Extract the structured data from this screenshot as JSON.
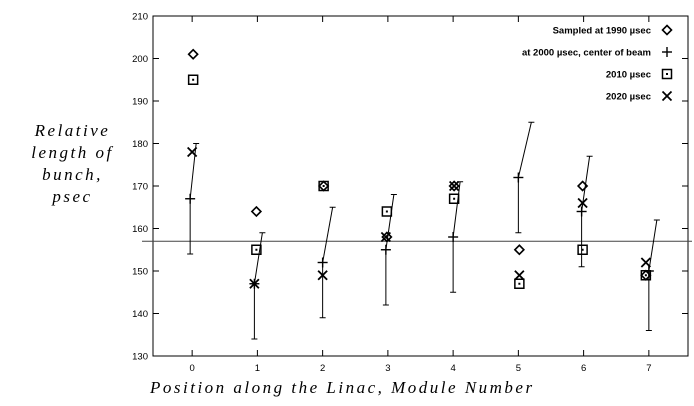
{
  "chart_data": {
    "type": "scatter",
    "title": "",
    "xlabel": "Position along the Linac, Module Number",
    "ylabel_lines": [
      "Relative",
      "length of",
      "bunch,",
      "psec"
    ],
    "xlim": [
      -0.6,
      7.6
    ],
    "ylim": [
      130,
      210
    ],
    "x_ticks": [
      0,
      1,
      2,
      3,
      4,
      5,
      6,
      7
    ],
    "y_ticks": [
      130,
      140,
      150,
      160,
      170,
      180,
      190,
      200,
      210
    ],
    "reference_line_y": 157,
    "legend_position": "top-right",
    "series": [
      {
        "name": "Sampled at 1990 µsec",
        "marker": "diamond",
        "points": [
          [
            0,
            201
          ],
          [
            1,
            164
          ],
          [
            2,
            170
          ],
          [
            3,
            158
          ],
          [
            4,
            170
          ],
          [
            5,
            155
          ],
          [
            6,
            170
          ],
          [
            7,
            149
          ]
        ]
      },
      {
        "name": "at 2000 µsec, center of beam",
        "marker": "plus",
        "points": [
          [
            0,
            167
          ],
          [
            1,
            147
          ],
          [
            2,
            152
          ],
          [
            3,
            155
          ],
          [
            4,
            158
          ],
          [
            5,
            172
          ],
          [
            6,
            164
          ],
          [
            7,
            150
          ]
        ]
      },
      {
        "name": "2010 µsec",
        "marker": "square-dot",
        "points": [
          [
            0,
            195
          ],
          [
            1,
            155
          ],
          [
            2,
            170
          ],
          [
            3,
            164
          ],
          [
            4,
            167
          ],
          [
            5,
            147
          ],
          [
            6,
            155
          ],
          [
            7,
            149
          ]
        ]
      },
      {
        "name": "2020 µsec",
        "marker": "x",
        "points": [
          [
            0,
            178
          ],
          [
            1,
            147
          ],
          [
            2,
            149
          ],
          [
            3,
            158
          ],
          [
            4,
            170
          ],
          [
            5,
            149
          ],
          [
            6,
            166
          ],
          [
            7,
            152
          ]
        ]
      }
    ],
    "error_bars": [
      {
        "x": 0,
        "low": 154,
        "high": 180,
        "center": 167
      },
      {
        "x": 1,
        "low": 134,
        "high": 159,
        "center": 147
      },
      {
        "x": 2,
        "low": 139,
        "high": 165,
        "center": 152
      },
      {
        "x": 3,
        "low": 142,
        "high": 168,
        "center": 155
      },
      {
        "x": 4,
        "low": 145,
        "high": 171,
        "center": 158
      },
      {
        "x": 5,
        "low": 159,
        "high": 185,
        "center": 172
      },
      {
        "x": 6,
        "low": 151,
        "high": 177,
        "center": 164
      },
      {
        "x": 7,
        "low": 136,
        "high": 162,
        "center": 150
      }
    ]
  }
}
